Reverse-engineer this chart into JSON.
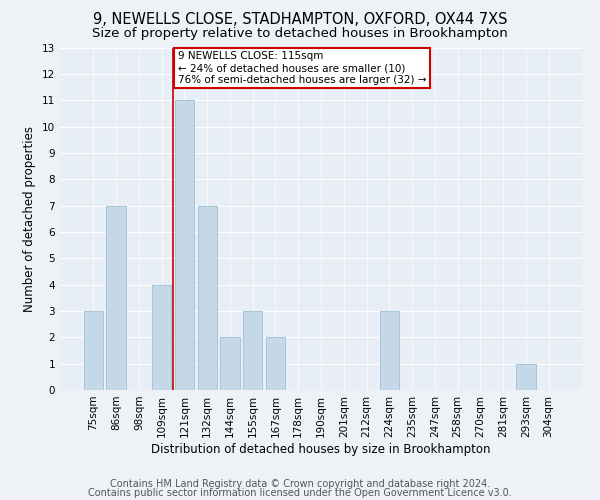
{
  "title": "9, NEWELLS CLOSE, STADHAMPTON, OXFORD, OX44 7XS",
  "subtitle": "Size of property relative to detached houses in Brookhampton",
  "xlabel": "Distribution of detached houses by size in Brookhampton",
  "ylabel": "Number of detached properties",
  "categories": [
    "75sqm",
    "86sqm",
    "98sqm",
    "109sqm",
    "121sqm",
    "132sqm",
    "144sqm",
    "155sqm",
    "167sqm",
    "178sqm",
    "190sqm",
    "201sqm",
    "212sqm",
    "224sqm",
    "235sqm",
    "247sqm",
    "258sqm",
    "270sqm",
    "281sqm",
    "293sqm",
    "304sqm"
  ],
  "values": [
    3,
    7,
    0,
    4,
    11,
    7,
    2,
    3,
    2,
    0,
    0,
    0,
    0,
    3,
    0,
    0,
    0,
    0,
    0,
    1,
    0
  ],
  "bar_color": "#c5d8e8",
  "bar_edge_color": "#a8c4d8",
  "vline_x": 3.5,
  "vline_color": "#cc0000",
  "annotation_text": "9 NEWELLS CLOSE: 115sqm\n← 24% of detached houses are smaller (10)\n76% of semi-detached houses are larger (32) →",
  "annotation_box_color": "#ffffff",
  "annotation_box_edge": "#cc0000",
  "ylim": [
    0,
    13
  ],
  "yticks": [
    0,
    1,
    2,
    3,
    4,
    5,
    6,
    7,
    8,
    9,
    10,
    11,
    12,
    13
  ],
  "footer1": "Contains HM Land Registry data © Crown copyright and database right 2024.",
  "footer2": "Contains public sector information licensed under the Open Government Licence v3.0.",
  "title_fontsize": 10.5,
  "subtitle_fontsize": 9.5,
  "label_fontsize": 8.5,
  "tick_fontsize": 7.5,
  "annotation_fontsize": 7.5,
  "footer_fontsize": 7,
  "bg_color": "#eef2f7",
  "plot_bg_color": "#e8eef5"
}
